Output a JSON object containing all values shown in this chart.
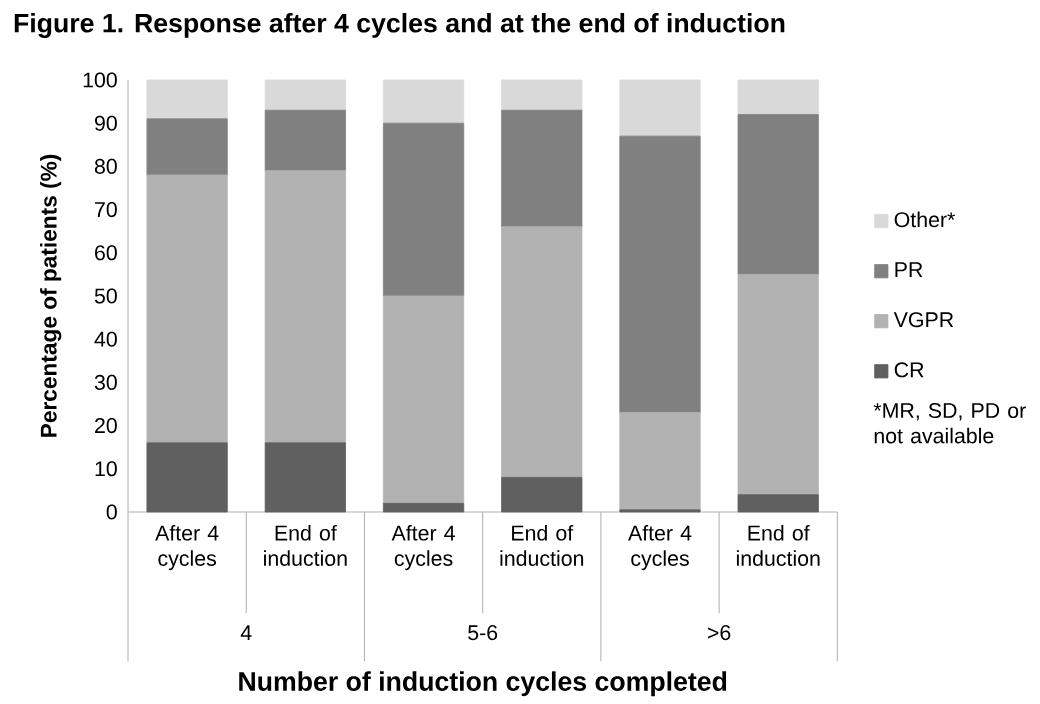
{
  "chart_data": {
    "type": "bar",
    "stacked": true,
    "title": "Figure 1. Response after 4 cycles and at the end of induction",
    "xlabel": "Number of induction cycles completed",
    "ylabel": "Percentage of patients (%)",
    "categories": [
      "After 4 cycles",
      "End of induction",
      "After 4 cycles",
      "End of induction",
      "After 4 cycles",
      "End of induction"
    ],
    "series": [
      {
        "name": "CR",
        "color": "#606060",
        "values": [
          16,
          16,
          2,
          8,
          0.5,
          4
        ]
      },
      {
        "name": "VGPR",
        "color": "#b2b2b2",
        "values": [
          62,
          63,
          48,
          58,
          22.5,
          51
        ]
      },
      {
        "name": "PR",
        "color": "#808080",
        "values": [
          13,
          14,
          40,
          27,
          64,
          37
        ]
      },
      {
        "name": "Other*",
        "color": "#d9d9d9",
        "values": [
          9,
          7,
          10,
          7,
          13,
          8
        ]
      }
    ],
    "ylim": [
      0,
      100
    ],
    "yticks": [
      0,
      10,
      20,
      30,
      40,
      50,
      60,
      70,
      80,
      90,
      100
    ],
    "grid": false,
    "legend": "right",
    "annotations": [
      "4",
      "5-6",
      ">6",
      "*MR, SD, PD or not available"
    ]
  }
}
